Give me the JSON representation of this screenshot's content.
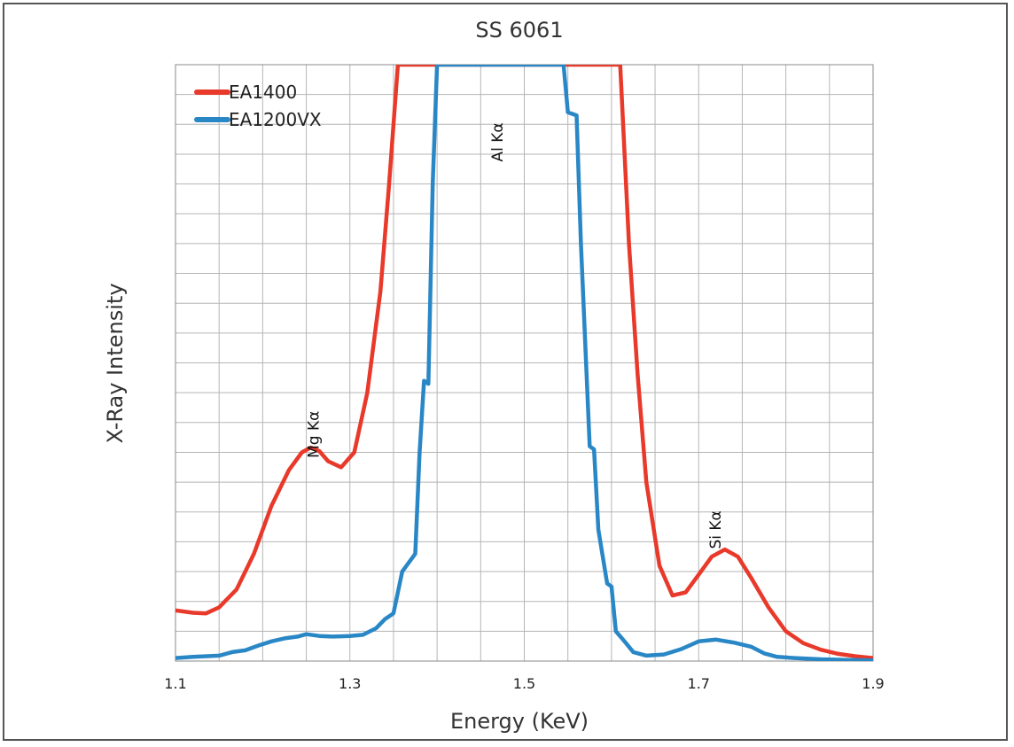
{
  "chart_data": {
    "type": "line",
    "title": "SS 6061",
    "xlabel": "Energy (KeV)",
    "ylabel": "X-Ray Intensity",
    "xlim": [
      1.1,
      1.9
    ],
    "ylim": [
      0,
      100
    ],
    "x_ticks": [
      "1.1",
      "1.3",
      "1.5",
      "1.7",
      "1.9"
    ],
    "grid": true,
    "legend_position": "top-left",
    "annotations": [
      {
        "text": "Mg Kα",
        "x": 1.264,
        "y": 38
      },
      {
        "text": "Al Kα",
        "x": 1.475,
        "y": 87
      },
      {
        "text": "Si Kα",
        "x": 1.725,
        "y": 22
      }
    ],
    "series": [
      {
        "name": "EA1400",
        "color": "#e8392a",
        "x": [
          1.1,
          1.12,
          1.135,
          1.15,
          1.17,
          1.19,
          1.21,
          1.23,
          1.245,
          1.255,
          1.265,
          1.275,
          1.29,
          1.305,
          1.32,
          1.335,
          1.345,
          1.355,
          1.61,
          1.62,
          1.63,
          1.64,
          1.655,
          1.67,
          1.685,
          1.7,
          1.715,
          1.73,
          1.745,
          1.76,
          1.78,
          1.8,
          1.82,
          1.84,
          1.86,
          1.88,
          1.9
        ],
        "y": [
          8.5,
          8.1,
          8,
          9,
          12,
          18,
          26,
          32,
          35,
          35.8,
          35.2,
          33.5,
          32.5,
          35,
          45,
          62,
          80,
          100,
          100,
          70,
          48,
          30,
          16,
          11,
          11.5,
          14.5,
          17.5,
          18.7,
          17.5,
          14,
          9,
          5,
          3,
          1.9,
          1.2,
          0.8,
          0.5
        ]
      },
      {
        "name": "EA1200VX",
        "color": "#2a87c6",
        "x": [
          1.1,
          1.12,
          1.15,
          1.165,
          1.18,
          1.195,
          1.21,
          1.225,
          1.24,
          1.25,
          1.265,
          1.28,
          1.3,
          1.315,
          1.33,
          1.34,
          1.35,
          1.36,
          1.365,
          1.375,
          1.38,
          1.385,
          1.39,
          1.395,
          1.4,
          1.545,
          1.55,
          1.56,
          1.565,
          1.575,
          1.58,
          1.585,
          1.595,
          1.6,
          1.605,
          1.615,
          1.625,
          1.64,
          1.66,
          1.68,
          1.7,
          1.72,
          1.74,
          1.76,
          1.775,
          1.79,
          1.81,
          1.84,
          1.87,
          1.9
        ],
        "y": [
          0.5,
          0.7,
          0.9,
          1.5,
          1.8,
          2.6,
          3.3,
          3.8,
          4.1,
          4.5,
          4.2,
          4.1,
          4.2,
          4.4,
          5.5,
          7,
          8,
          15,
          16,
          18,
          35,
          47,
          46.5,
          80,
          100,
          100,
          92,
          91.5,
          70,
          36,
          35.5,
          22,
          13,
          12.5,
          5,
          3.3,
          1.5,
          0.9,
          1.1,
          2,
          3.3,
          3.6,
          3.1,
          2.4,
          1.3,
          0.7,
          0.5,
          0.3,
          0.2,
          0.1
        ]
      }
    ]
  }
}
